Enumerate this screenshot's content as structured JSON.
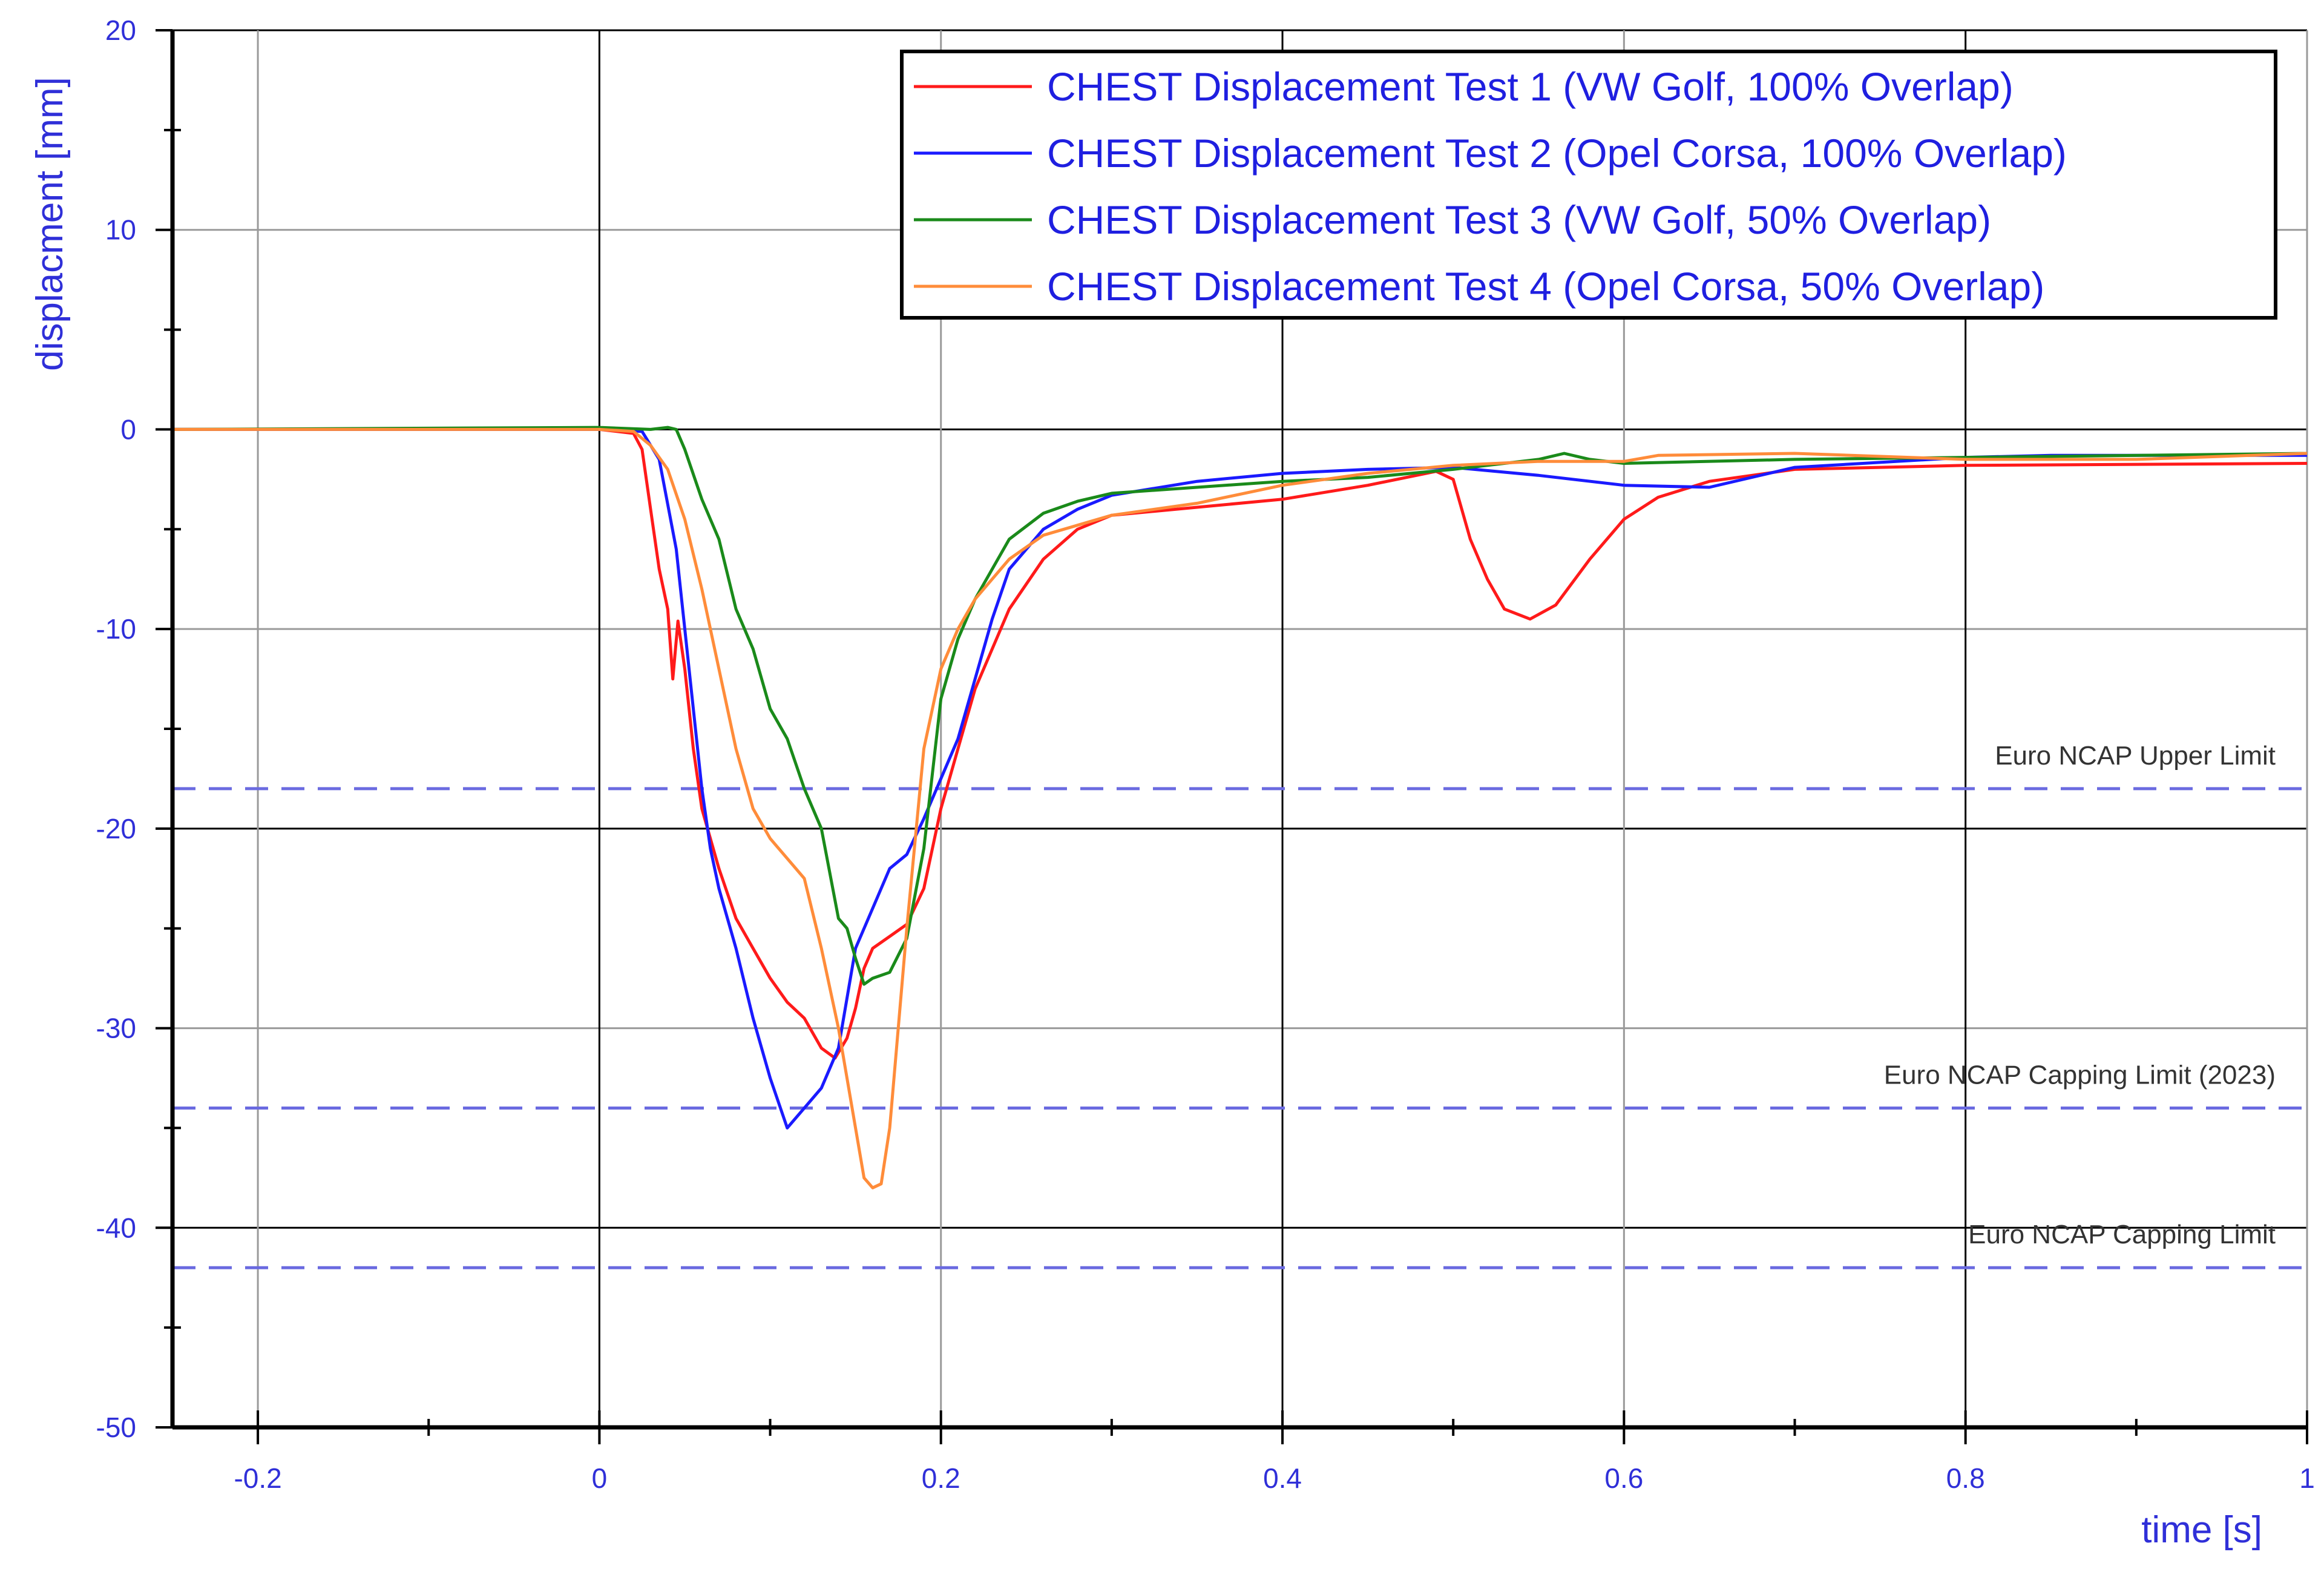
{
  "chart_data": {
    "type": "line",
    "xlabel": "time [s]",
    "ylabel": "displacment [mm]",
    "xlim": [
      -0.25,
      1.0
    ],
    "ylim": [
      -50,
      20
    ],
    "x_ticks": [
      -0.2,
      0,
      0.2,
      0.4,
      0.6,
      0.8,
      1
    ],
    "x_tick_labels": [
      "-0.2",
      "0",
      "0.2",
      "0.4",
      "0.6",
      "0.8",
      "1"
    ],
    "y_ticks": [
      20,
      10,
      0,
      -10,
      -20,
      -30,
      -40,
      -50
    ],
    "y_tick_labels": [
      "20",
      "10",
      "0",
      "-10",
      "-20",
      "-30",
      "-40",
      "-50"
    ],
    "grid": true,
    "legend_position": "top-right",
    "series": [
      {
        "name": "CHEST Displacement Test 1 (VW Golf, 100% Overlap)",
        "color": "#ff1a1a",
        "points": [
          [
            -0.25,
            0
          ],
          [
            0,
            0
          ],
          [
            0.02,
            -0.2
          ],
          [
            0.025,
            -1
          ],
          [
            0.03,
            -4
          ],
          [
            0.035,
            -7
          ],
          [
            0.04,
            -9
          ],
          [
            0.043,
            -12.5
          ],
          [
            0.046,
            -9.6
          ],
          [
            0.05,
            -12
          ],
          [
            0.055,
            -16
          ],
          [
            0.06,
            -19
          ],
          [
            0.07,
            -22
          ],
          [
            0.08,
            -24.5
          ],
          [
            0.09,
            -26
          ],
          [
            0.1,
            -27.5
          ],
          [
            0.11,
            -28.7
          ],
          [
            0.12,
            -29.5
          ],
          [
            0.13,
            -31
          ],
          [
            0.138,
            -31.5
          ],
          [
            0.145,
            -30.5
          ],
          [
            0.15,
            -29
          ],
          [
            0.155,
            -27
          ],
          [
            0.16,
            -26
          ],
          [
            0.17,
            -25.4
          ],
          [
            0.18,
            -24.8
          ],
          [
            0.19,
            -23
          ],
          [
            0.2,
            -19
          ],
          [
            0.21,
            -16
          ],
          [
            0.22,
            -13
          ],
          [
            0.24,
            -9
          ],
          [
            0.26,
            -6.5
          ],
          [
            0.28,
            -5
          ],
          [
            0.3,
            -4.3
          ],
          [
            0.35,
            -3.9
          ],
          [
            0.4,
            -3.5
          ],
          [
            0.45,
            -2.8
          ],
          [
            0.49,
            -2.1
          ],
          [
            0.5,
            -2.5
          ],
          [
            0.51,
            -5.5
          ],
          [
            0.52,
            -7.5
          ],
          [
            0.53,
            -9
          ],
          [
            0.545,
            -9.5
          ],
          [
            0.56,
            -8.8
          ],
          [
            0.58,
            -6.5
          ],
          [
            0.6,
            -4.5
          ],
          [
            0.62,
            -3.4
          ],
          [
            0.65,
            -2.6
          ],
          [
            0.7,
            -2
          ],
          [
            0.8,
            -1.8
          ],
          [
            1.0,
            -1.7
          ]
        ]
      },
      {
        "name": "CHEST Displacement Test 2 (Opel Corsa, 100% Overlap)",
        "color": "#1a1aff",
        "points": [
          [
            -0.25,
            0
          ],
          [
            0,
            0
          ],
          [
            0.025,
            -0.1
          ],
          [
            0.035,
            -1.5
          ],
          [
            0.045,
            -6
          ],
          [
            0.05,
            -10
          ],
          [
            0.055,
            -14
          ],
          [
            0.06,
            -18
          ],
          [
            0.065,
            -21
          ],
          [
            0.07,
            -23
          ],
          [
            0.08,
            -26
          ],
          [
            0.09,
            -29.5
          ],
          [
            0.1,
            -32.5
          ],
          [
            0.11,
            -35
          ],
          [
            0.12,
            -34
          ],
          [
            0.13,
            -33
          ],
          [
            0.14,
            -31
          ],
          [
            0.15,
            -26
          ],
          [
            0.16,
            -24
          ],
          [
            0.17,
            -22
          ],
          [
            0.18,
            -21.3
          ],
          [
            0.19,
            -19.5
          ],
          [
            0.2,
            -17.5
          ],
          [
            0.21,
            -15.5
          ],
          [
            0.22,
            -12.5
          ],
          [
            0.23,
            -9.5
          ],
          [
            0.24,
            -7
          ],
          [
            0.26,
            -5
          ],
          [
            0.28,
            -4
          ],
          [
            0.3,
            -3.3
          ],
          [
            0.35,
            -2.6
          ],
          [
            0.4,
            -2.2
          ],
          [
            0.45,
            -2
          ],
          [
            0.5,
            -1.9
          ],
          [
            0.55,
            -2.3
          ],
          [
            0.6,
            -2.8
          ],
          [
            0.65,
            -2.9
          ],
          [
            0.7,
            -1.9
          ],
          [
            0.8,
            -1.4
          ],
          [
            0.85,
            -1.3
          ],
          [
            1.0,
            -1.3
          ]
        ]
      },
      {
        "name": "CHEST Displacement Test 3 (VW Golf, 50% Overlap)",
        "color": "#1a8a1a",
        "points": [
          [
            -0.25,
            0
          ],
          [
            0,
            0.1
          ],
          [
            0.03,
            0
          ],
          [
            0.04,
            0.1
          ],
          [
            0.045,
            0
          ],
          [
            0.05,
            -1
          ],
          [
            0.06,
            -3.5
          ],
          [
            0.07,
            -5.5
          ],
          [
            0.08,
            -9
          ],
          [
            0.09,
            -11
          ],
          [
            0.1,
            -14
          ],
          [
            0.11,
            -15.5
          ],
          [
            0.12,
            -18
          ],
          [
            0.13,
            -20
          ],
          [
            0.14,
            -24.5
          ],
          [
            0.145,
            -25
          ],
          [
            0.15,
            -26.5
          ],
          [
            0.155,
            -27.8
          ],
          [
            0.16,
            -27.5
          ],
          [
            0.17,
            -27.2
          ],
          [
            0.18,
            -25.5
          ],
          [
            0.19,
            -21
          ],
          [
            0.2,
            -13.5
          ],
          [
            0.21,
            -10.5
          ],
          [
            0.22,
            -8.5
          ],
          [
            0.23,
            -7
          ],
          [
            0.24,
            -5.5
          ],
          [
            0.26,
            -4.2
          ],
          [
            0.28,
            -3.6
          ],
          [
            0.3,
            -3.2
          ],
          [
            0.35,
            -2.9
          ],
          [
            0.4,
            -2.6
          ],
          [
            0.45,
            -2.4
          ],
          [
            0.5,
            -2
          ],
          [
            0.55,
            -1.5
          ],
          [
            0.565,
            -1.2
          ],
          [
            0.58,
            -1.5
          ],
          [
            0.6,
            -1.7
          ],
          [
            0.7,
            -1.5
          ],
          [
            0.8,
            -1.4
          ],
          [
            1.0,
            -1.2
          ]
        ]
      },
      {
        "name": "CHEST Displacement Test 4 (Opel Corsa, 50% Overlap)",
        "color": "#ff8c3a",
        "points": [
          [
            -0.25,
            0
          ],
          [
            0,
            0
          ],
          [
            0.02,
            -0.1
          ],
          [
            0.03,
            -0.8
          ],
          [
            0.04,
            -2
          ],
          [
            0.05,
            -4.5
          ],
          [
            0.06,
            -8
          ],
          [
            0.07,
            -12
          ],
          [
            0.08,
            -16
          ],
          [
            0.09,
            -19
          ],
          [
            0.1,
            -20.5
          ],
          [
            0.11,
            -21.5
          ],
          [
            0.12,
            -22.5
          ],
          [
            0.13,
            -26
          ],
          [
            0.14,
            -30
          ],
          [
            0.15,
            -35
          ],
          [
            0.155,
            -37.5
          ],
          [
            0.16,
            -38
          ],
          [
            0.165,
            -37.8
          ],
          [
            0.17,
            -35
          ],
          [
            0.18,
            -25
          ],
          [
            0.19,
            -16
          ],
          [
            0.2,
            -12
          ],
          [
            0.21,
            -10
          ],
          [
            0.22,
            -8.5
          ],
          [
            0.24,
            -6.5
          ],
          [
            0.26,
            -5.3
          ],
          [
            0.28,
            -4.8
          ],
          [
            0.3,
            -4.3
          ],
          [
            0.35,
            -3.7
          ],
          [
            0.4,
            -2.8
          ],
          [
            0.45,
            -2.2
          ],
          [
            0.5,
            -1.8
          ],
          [
            0.55,
            -1.6
          ],
          [
            0.6,
            -1.6
          ],
          [
            0.62,
            -1.3
          ],
          [
            0.7,
            -1.2
          ],
          [
            0.8,
            -1.5
          ],
          [
            0.9,
            -1.5
          ],
          [
            1.0,
            -1.2
          ]
        ]
      }
    ],
    "reference_lines": [
      {
        "label": "Euro NCAP Upper Limit",
        "y": -18,
        "color": "#6a6ae0"
      },
      {
        "label": "Euro NCAP Capping Limit (2023)",
        "y": -34,
        "color": "#6a6ae0"
      },
      {
        "label": "Euro NCAP Capping Limit",
        "y": -42,
        "color": "#6a6ae0"
      }
    ]
  }
}
